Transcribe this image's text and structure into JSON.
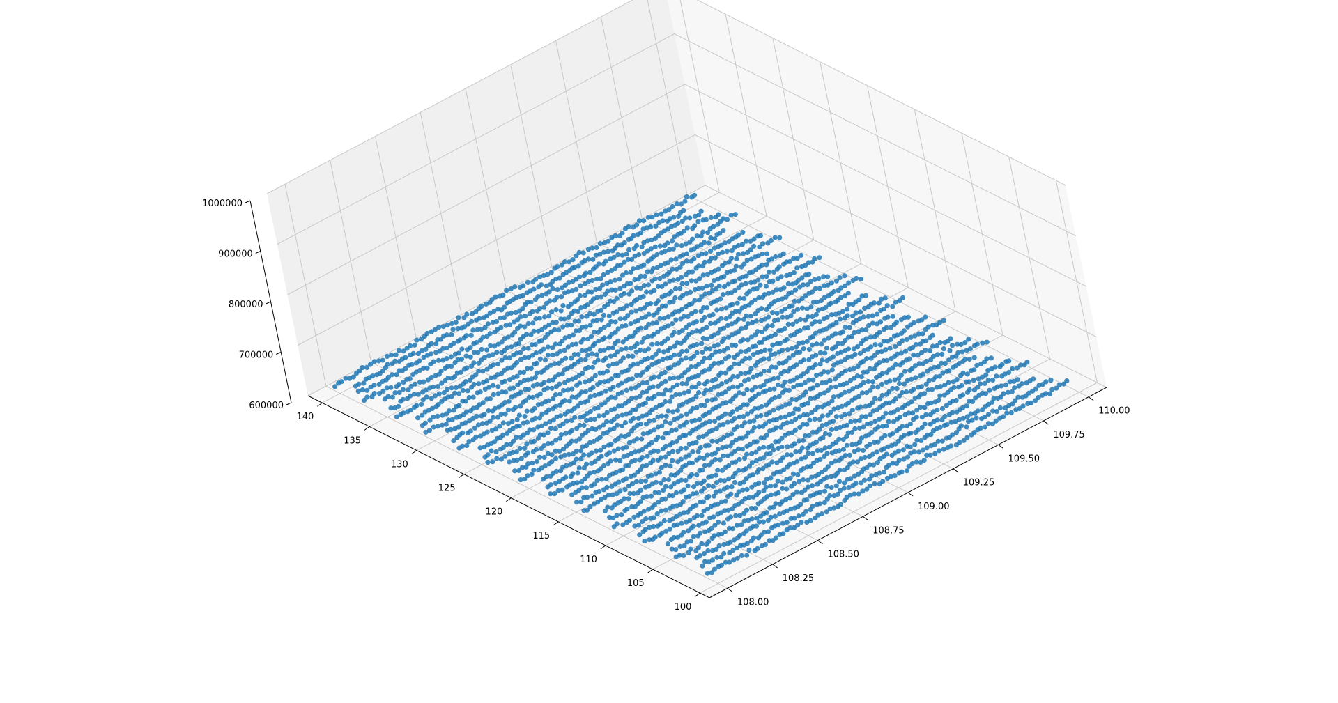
{
  "chart_data": {
    "type": "scatter",
    "projection": "3d",
    "title": "",
    "xlabel": "",
    "ylabel": "",
    "zlabel": "",
    "xlim": [
      107.9,
      110.1
    ],
    "ylim": [
      99,
      141.5
    ],
    "zlim": [
      600000,
      1000000
    ],
    "grid": true,
    "marker_color": "#1f77b4",
    "x_ticks": [
      "108.00",
      "108.25",
      "108.50",
      "108.75",
      "109.00",
      "109.25",
      "109.50",
      "109.75",
      "110.00"
    ],
    "y_ticks": [
      "100",
      "105",
      "110",
      "115",
      "120",
      "125",
      "130",
      "135",
      "140"
    ],
    "z_ticks": [
      "600000",
      "700000",
      "800000",
      "900000",
      "1000000"
    ],
    "series": [
      {
        "description": "survey track lines at roughly constant z near 610000",
        "x_start": 108.0,
        "x_end": 110.0,
        "z_level": 610000,
        "track_y_values": [
          101.0,
          102.1,
          103.2,
          104.3,
          105.4,
          106.5,
          107.6,
          108.7,
          109.8,
          110.9,
          112.0,
          113.1,
          114.2,
          115.3,
          116.4,
          117.5,
          118.6,
          119.7,
          120.8,
          121.9,
          123.0,
          124.1,
          125.2,
          126.3,
          127.4,
          128.5,
          129.6,
          130.7,
          131.8,
          132.9,
          134.0,
          135.1,
          136.2,
          137.3,
          138.4,
          139.5,
          140.6
        ]
      }
    ]
  }
}
